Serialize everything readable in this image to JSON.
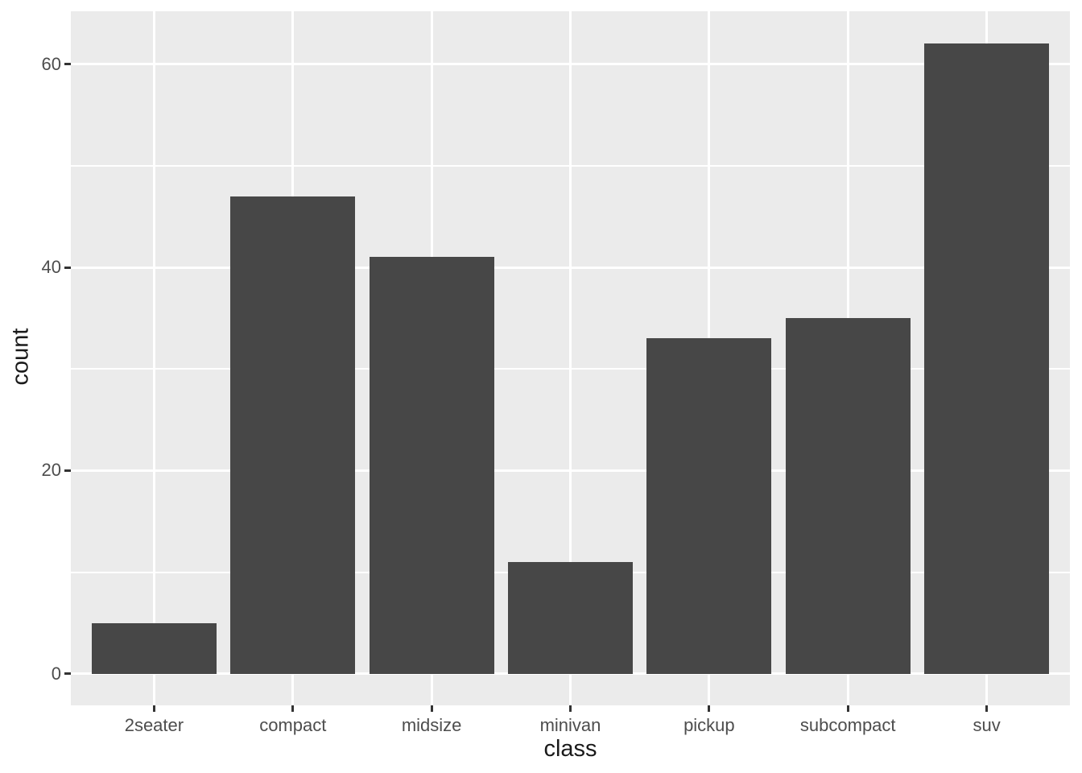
{
  "chart_data": {
    "type": "bar",
    "title": "",
    "categories": [
      "2seater",
      "compact",
      "midsize",
      "minivan",
      "pickup",
      "subcompact",
      "suv"
    ],
    "values": [
      5,
      47,
      41,
      11,
      33,
      35,
      62
    ],
    "xlabel": "class",
    "ylabel": "count",
    "ylim": [
      -3.1,
      65.2
    ],
    "yticks": [
      0,
      20,
      40,
      60
    ],
    "yticks_minor": [
      10,
      30,
      50
    ],
    "grid": true,
    "legend": false,
    "colors": {
      "bar_fill": "#474747",
      "panel_bg": "#EBEBEB",
      "grid_major": "#FFFFFF",
      "grid_minor": "#FFFFFF",
      "tick_mark": "#333333",
      "axis_text": "#4D4D4D",
      "axis_title": "#1A1A1A",
      "figure_bg": "#FFFFFF"
    }
  }
}
